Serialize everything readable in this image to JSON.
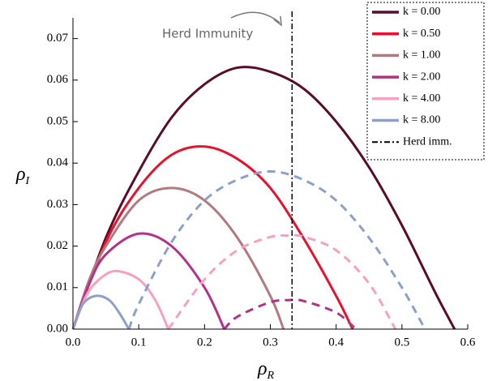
{
  "chart_data": {
    "type": "line",
    "xlabel": {
      "symbol": "ρ",
      "subscript": "R"
    },
    "ylabel": {
      "symbol": "ρ",
      "subscript": "I"
    },
    "xlim": [
      0,
      0.6
    ],
    "ylim": [
      0,
      0.075
    ],
    "xticks": [
      {
        "value": 0,
        "label": "0.0"
      },
      0.1,
      0.2,
      0.3,
      0.4,
      0.5,
      0.6
    ],
    "yticks": [
      {
        "value": 0,
        "label": "0.00"
      },
      0.01,
      0.02,
      0.03,
      0.04,
      0.05,
      0.06,
      0.07
    ],
    "legend": "upper right",
    "series": [
      {
        "name": "k = 0.00",
        "color": "#5c0a2a",
        "segments": [
          {
            "style": "solid",
            "x": [
              0,
              0.05,
              0.1,
              0.15,
              0.2,
              0.25,
              0.3,
              0.35,
              0.4,
              0.45,
              0.5,
              0.55,
              0.58
            ],
            "values": [
              0,
              0.022,
              0.038,
              0.051,
              0.059,
              0.063,
              0.062,
              0.058,
              0.05,
              0.039,
              0.025,
              0.009,
              0
            ]
          }
        ]
      },
      {
        "name": "k = 0.50",
        "color": "#e8112d",
        "segments": [
          {
            "style": "solid",
            "x": [
              0,
              0.05,
              0.1,
              0.15,
              0.2,
              0.25,
              0.3,
              0.35,
              0.4,
              0.425
            ],
            "values": [
              0,
              0.021,
              0.034,
              0.042,
              0.044,
              0.041,
              0.034,
              0.022,
              0.008,
              0
            ]
          }
        ]
      },
      {
        "name": "k = 1.00",
        "color": "#b07a80",
        "segments": [
          {
            "style": "solid",
            "x": [
              0,
              0.025,
              0.05,
              0.1,
              0.15,
              0.2,
              0.25,
              0.3,
              0.32
            ],
            "values": [
              0,
              0.012,
              0.02,
              0.031,
              0.034,
              0.031,
              0.022,
              0.008,
              0
            ]
          }
        ]
      },
      {
        "name": "k = 2.00",
        "color": "#b0338a",
        "segments": [
          {
            "style": "solid",
            "x": [
              0,
              0.025,
              0.05,
              0.1,
              0.15,
              0.2,
              0.23
            ],
            "values": [
              0,
              0.011,
              0.018,
              0.023,
              0.02,
              0.01,
              0
            ]
          },
          {
            "style": "dashed",
            "x": [
              0.23,
              0.25,
              0.3,
              0.33,
              0.35,
              0.4,
              0.43
            ],
            "values": [
              0,
              0.003,
              0.0065,
              0.007,
              0.0068,
              0.004,
              0
            ]
          }
        ]
      },
      {
        "name": "k = 4.00",
        "color": "#f7a0c0",
        "segments": [
          {
            "style": "solid",
            "x": [
              0,
              0.02,
              0.04,
              0.065,
              0.1,
              0.125,
              0.145
            ],
            "values": [
              0,
              0.008,
              0.012,
              0.014,
              0.012,
              0.007,
              0
            ]
          },
          {
            "style": "dashed",
            "x": [
              0.145,
              0.2,
              0.25,
              0.3,
              0.33,
              0.35,
              0.4,
              0.45,
              0.49
            ],
            "values": [
              0,
              0.012,
              0.019,
              0.0222,
              0.0225,
              0.0223,
              0.019,
              0.011,
              0
            ]
          }
        ]
      },
      {
        "name": "k = 8.00",
        "color": "#8fa0c8",
        "segments": [
          {
            "style": "solid",
            "x": [
              0,
              0.015,
              0.035,
              0.055,
              0.07,
              0.085
            ],
            "values": [
              0,
              0.006,
              0.008,
              0.007,
              0.004,
              0
            ]
          },
          {
            "style": "dashed",
            "x": [
              0.085,
              0.1,
              0.15,
              0.2,
              0.25,
              0.3,
              0.35,
              0.4,
              0.45,
              0.5,
              0.535
            ],
            "values": [
              0,
              0.006,
              0.021,
              0.031,
              0.036,
              0.038,
              0.036,
              0.031,
              0.022,
              0.01,
              0
            ]
          }
        ]
      }
    ],
    "vline": {
      "x": 0.333,
      "name": "Herd imm.",
      "color": "#000000",
      "annotation": "Herd Immunity"
    }
  }
}
